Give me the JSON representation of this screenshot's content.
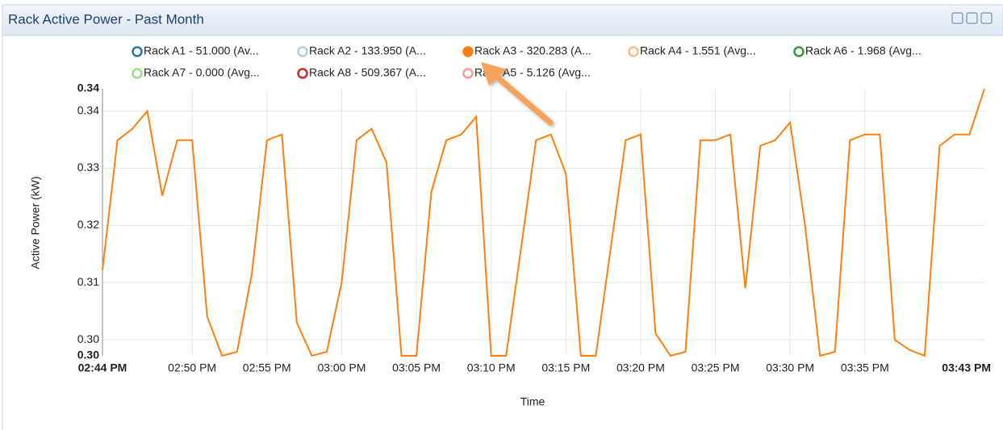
{
  "panel": {
    "title": "Rack Active Power - Past Month"
  },
  "chart_data": {
    "type": "line",
    "xlabel": "Time",
    "ylabel": "Active Power (kW)",
    "x": [
      "02:44 PM",
      "02:45 PM",
      "02:46 PM",
      "02:47 PM",
      "02:48 PM",
      "02:49 PM",
      "02:50 PM",
      "02:51 PM",
      "02:52 PM",
      "02:53 PM",
      "02:54 PM",
      "02:55 PM",
      "02:56 PM",
      "02:57 PM",
      "02:58 PM",
      "02:59 PM",
      "03:00 PM",
      "03:01 PM",
      "03:02 PM",
      "03:03 PM",
      "03:04 PM",
      "03:05 PM",
      "03:06 PM",
      "03:07 PM",
      "03:08 PM",
      "03:09 PM",
      "03:10 PM",
      "03:11 PM",
      "03:12 PM",
      "03:13 PM",
      "03:14 PM",
      "03:15 PM",
      "03:16 PM",
      "03:17 PM",
      "03:18 PM",
      "03:19 PM",
      "03:20 PM",
      "03:21 PM",
      "03:22 PM",
      "03:23 PM",
      "03:24 PM",
      "03:25 PM",
      "03:26 PM",
      "03:27 PM",
      "03:28 PM",
      "03:29 PM",
      "03:30 PM",
      "03:31 PM",
      "03:32 PM",
      "03:33 PM",
      "03:34 PM",
      "03:35 PM",
      "03:36 PM",
      "03:37 PM",
      "03:38 PM",
      "03:39 PM",
      "03:40 PM",
      "03:41 PM",
      "03:42 PM",
      "03:43 PM"
    ],
    "series": [
      {
        "name": "Rack A1 - 51.000 (Av...",
        "color": "#2a6fb0",
        "visible": false
      },
      {
        "name": "Rack A2 - 133.950 (A...",
        "color": "#b8c8e0",
        "visible": false
      },
      {
        "name": "Rack A3 - 320.283 (A...",
        "color": "#ff7f0e",
        "visible": true,
        "values": [
          0.3122,
          0.3349,
          0.3369,
          0.34,
          0.3252,
          0.3349,
          0.3349,
          0.3041,
          0.2972,
          0.2979,
          0.3117,
          0.3349,
          0.3359,
          0.303,
          0.2972,
          0.2979,
          0.31,
          0.3349,
          0.3369,
          0.331,
          0.2972,
          0.2972,
          0.3259,
          0.3349,
          0.3359,
          0.339,
          0.2972,
          0.2972,
          0.316,
          0.3349,
          0.3359,
          0.329,
          0.2972,
          0.2972,
          0.316,
          0.3349,
          0.3359,
          0.3011,
          0.2972,
          0.2979,
          0.3349,
          0.3349,
          0.3359,
          0.309,
          0.3339,
          0.3349,
          0.338,
          0.32,
          0.2972,
          0.2979,
          0.3349,
          0.3359,
          0.3359,
          0.3,
          0.2982,
          0.2972,
          0.3339,
          0.3359,
          0.3359,
          0.3439
        ]
      },
      {
        "name": "Rack A4 - 1.551 (Avg...",
        "color": "#ffbb78",
        "visible": false
      },
      {
        "name": "Rack A6 - 1.968 (Avg...",
        "color": "#2ca02c",
        "visible": false
      },
      {
        "name": "Rack A7 - 0.000 (Avg...",
        "color": "#98df8a",
        "visible": false
      },
      {
        "name": "Rack A8 - 509.367 (A...",
        "color": "#d62728",
        "visible": false
      },
      {
        "name": "Rack A5 - 5.126 (Avg...",
        "color": "#ff9896",
        "visible": false
      }
    ],
    "xlim": [
      "02:44 PM",
      "03:43 PM"
    ],
    "xticks": [
      "02:44 PM",
      "02:50 PM",
      "02:55 PM",
      "03:00 PM",
      "03:05 PM",
      "03:10 PM",
      "03:15 PM",
      "03:20 PM",
      "03:25 PM",
      "03:30 PM",
      "03:35 PM",
      "03:43 PM"
    ],
    "ylim": [
      0.2972,
      0.3439
    ],
    "yticks": [
      {
        "value": 0.2972,
        "label": "0.30"
      },
      {
        "value": 0.3,
        "label": "0.30"
      },
      {
        "value": 0.31,
        "label": "0.31"
      },
      {
        "value": 0.32,
        "label": "0.32"
      },
      {
        "value": 0.33,
        "label": "0.33"
      },
      {
        "value": 0.34,
        "label": "0.34"
      },
      {
        "value": 0.3439,
        "label": "0.34"
      }
    ],
    "grid": true
  }
}
